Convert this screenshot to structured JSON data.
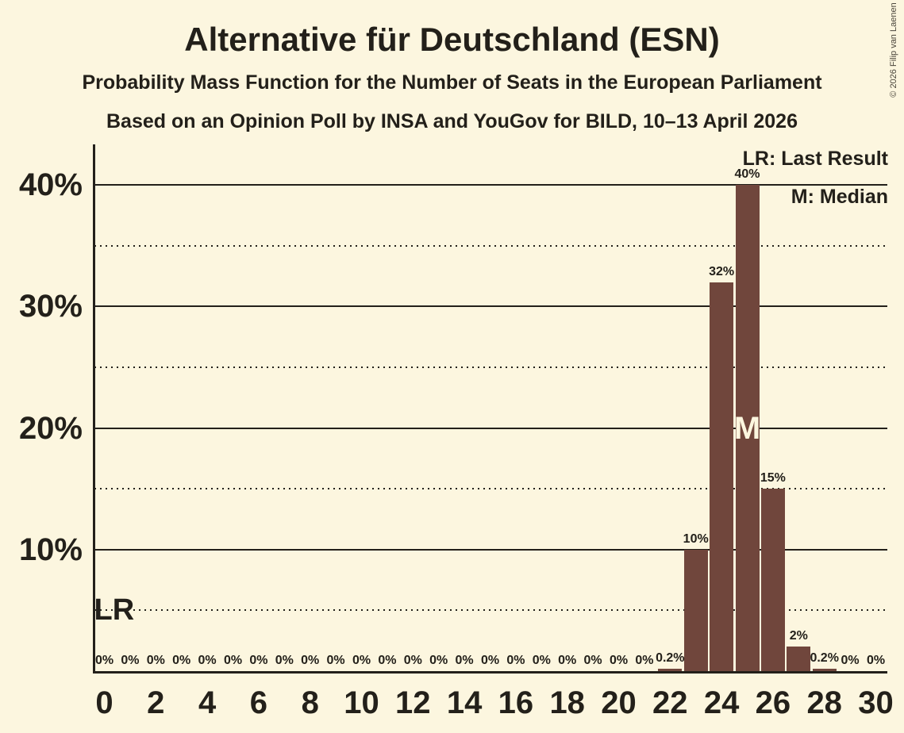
{
  "header": {
    "title": "Alternative für Deutschland (ESN)",
    "subtitle1": "Probability Mass Function for the Number of Seats in the European Parliament",
    "subtitle2": "Based on an Opinion Poll by INSA and YouGov for BILD, 10–13 April 2026"
  },
  "copyright": "© 2026 Filip van Laenen",
  "legend": {
    "lr": "LR: Last Result",
    "m": "M: Median"
  },
  "markers": {
    "lr_label": "LR",
    "m_label": "M",
    "last_result_seat": 0,
    "median_seat": 25
  },
  "colors": {
    "background": "#FCF6DF",
    "bar": "#70463C",
    "text": "#23201A",
    "median_letter": "#FCF6DF"
  },
  "chart_data": {
    "type": "bar",
    "title": "Alternative für Deutschland (ESN)",
    "xlabel": "",
    "ylabel": "",
    "x": [
      0,
      1,
      2,
      3,
      4,
      5,
      6,
      7,
      8,
      9,
      10,
      11,
      12,
      13,
      14,
      15,
      16,
      17,
      18,
      19,
      20,
      21,
      22,
      23,
      24,
      25,
      26,
      27,
      28,
      29,
      30
    ],
    "values": [
      0,
      0,
      0,
      0,
      0,
      0,
      0,
      0,
      0,
      0,
      0,
      0,
      0,
      0,
      0,
      0,
      0,
      0,
      0,
      0,
      0,
      0,
      0.2,
      10,
      32,
      40,
      15,
      2,
      0.2,
      0,
      0
    ],
    "bar_labels": [
      "0%",
      "0%",
      "0%",
      "0%",
      "0%",
      "0%",
      "0%",
      "0%",
      "0%",
      "0%",
      "0%",
      "0%",
      "0%",
      "0%",
      "0%",
      "0%",
      "0%",
      "0%",
      "0%",
      "0%",
      "0%",
      "0%",
      "0.2%",
      "10%",
      "32%",
      "40%",
      "15%",
      "2%",
      "0.2%",
      "0%",
      "0%"
    ],
    "xticks": [
      "0",
      "2",
      "4",
      "6",
      "8",
      "10",
      "12",
      "14",
      "16",
      "18",
      "20",
      "22",
      "24",
      "26",
      "28",
      "30"
    ],
    "yticks": [
      {
        "value": 10,
        "label": "10%"
      },
      {
        "value": 20,
        "label": "20%"
      },
      {
        "value": 30,
        "label": "30%"
      },
      {
        "value": 40,
        "label": "40%"
      }
    ],
    "minor_gridlines": [
      5,
      15,
      25,
      35
    ],
    "ylim": [
      0,
      43.3
    ],
    "grid": true,
    "legend_position": "top-right"
  }
}
